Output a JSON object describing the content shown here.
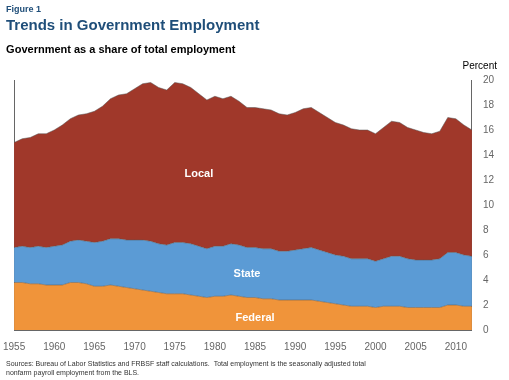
{
  "chart_data": {
    "type": "area",
    "stacked": true,
    "figure_label": "Figure 1",
    "title": "Trends in Government Employment",
    "subtitle": "Government as a share of total employment",
    "ylabel": "Percent",
    "source": "Sources: Bureau of Labor Statistics and FRBSF staff calculations.  Total employment is the seasonally adjusted total\nnonfarm payroll employment from the BLS.",
    "x": [
      1955,
      1956,
      1957,
      1958,
      1959,
      1960,
      1961,
      1962,
      1963,
      1964,
      1965,
      1966,
      1967,
      1968,
      1969,
      1970,
      1971,
      1972,
      1973,
      1974,
      1975,
      1976,
      1977,
      1978,
      1979,
      1980,
      1981,
      1982,
      1983,
      1984,
      1985,
      1986,
      1987,
      1988,
      1989,
      1990,
      1991,
      1992,
      1993,
      1994,
      1995,
      1996,
      1997,
      1998,
      1999,
      2000,
      2001,
      2002,
      2003,
      2004,
      2005,
      2006,
      2007,
      2008,
      2009,
      2010,
      2011,
      2012
    ],
    "series": [
      {
        "name": "Federal",
        "color": "#F0943A",
        "values": [
          3.8,
          3.8,
          3.7,
          3.7,
          3.6,
          3.6,
          3.6,
          3.8,
          3.8,
          3.7,
          3.5,
          3.5,
          3.6,
          3.5,
          3.4,
          3.3,
          3.2,
          3.1,
          3.0,
          2.9,
          2.9,
          2.9,
          2.8,
          2.7,
          2.6,
          2.7,
          2.7,
          2.8,
          2.7,
          2.6,
          2.6,
          2.5,
          2.5,
          2.4,
          2.4,
          2.4,
          2.4,
          2.4,
          2.3,
          2.2,
          2.1,
          2.0,
          1.9,
          1.9,
          1.9,
          1.8,
          1.9,
          1.9,
          1.9,
          1.8,
          1.8,
          1.8,
          1.8,
          1.8,
          2.0,
          2.0,
          1.9,
          1.9
        ]
      },
      {
        "name": "State",
        "color": "#5B9BD5",
        "values": [
          2.8,
          2.9,
          2.9,
          3.0,
          3.0,
          3.1,
          3.2,
          3.3,
          3.4,
          3.4,
          3.5,
          3.6,
          3.7,
          3.8,
          3.8,
          3.9,
          4.0,
          4.0,
          3.9,
          3.9,
          4.1,
          4.1,
          4.1,
          4.0,
          3.9,
          4.0,
          4.0,
          4.1,
          4.1,
          4.0,
          4.0,
          4.0,
          4.0,
          3.9,
          3.9,
          4.0,
          4.1,
          4.2,
          4.1,
          4.0,
          3.9,
          3.9,
          3.8,
          3.8,
          3.8,
          3.7,
          3.8,
          4.0,
          4.0,
          3.9,
          3.8,
          3.8,
          3.8,
          3.9,
          4.2,
          4.2,
          4.1,
          4.0
        ]
      },
      {
        "name": "Local",
        "color": "#A0382A",
        "values": [
          8.4,
          8.6,
          8.8,
          9.0,
          9.1,
          9.3,
          9.6,
          9.8,
          10.0,
          10.2,
          10.5,
          10.8,
          11.2,
          11.5,
          11.7,
          12.1,
          12.5,
          12.7,
          12.5,
          12.4,
          12.8,
          12.7,
          12.5,
          12.2,
          11.9,
          12.0,
          11.8,
          11.8,
          11.5,
          11.2,
          11.2,
          11.2,
          11.1,
          11.0,
          10.9,
          11.0,
          11.2,
          11.2,
          11.0,
          10.8,
          10.6,
          10.5,
          10.4,
          10.3,
          10.3,
          10.2,
          10.5,
          10.8,
          10.7,
          10.5,
          10.4,
          10.2,
          10.1,
          10.2,
          10.8,
          10.7,
          10.4,
          10.1
        ]
      }
    ],
    "annotations": [
      {
        "text": "Federal",
        "x": 1985,
        "y": 1.0
      },
      {
        "text": "State",
        "x": 1984,
        "y": 4.5
      },
      {
        "text": "Local",
        "x": 1978,
        "y": 12.5
      }
    ],
    "xlim": [
      1955,
      2012
    ],
    "xticks": [
      1955,
      1960,
      1965,
      1970,
      1975,
      1980,
      1985,
      1990,
      1995,
      2000,
      2005,
      2010
    ],
    "ylim": [
      0,
      20
    ],
    "yticks": [
      0,
      2,
      4,
      6,
      8,
      10,
      12,
      14,
      16,
      18,
      20
    ],
    "grid": false
  }
}
